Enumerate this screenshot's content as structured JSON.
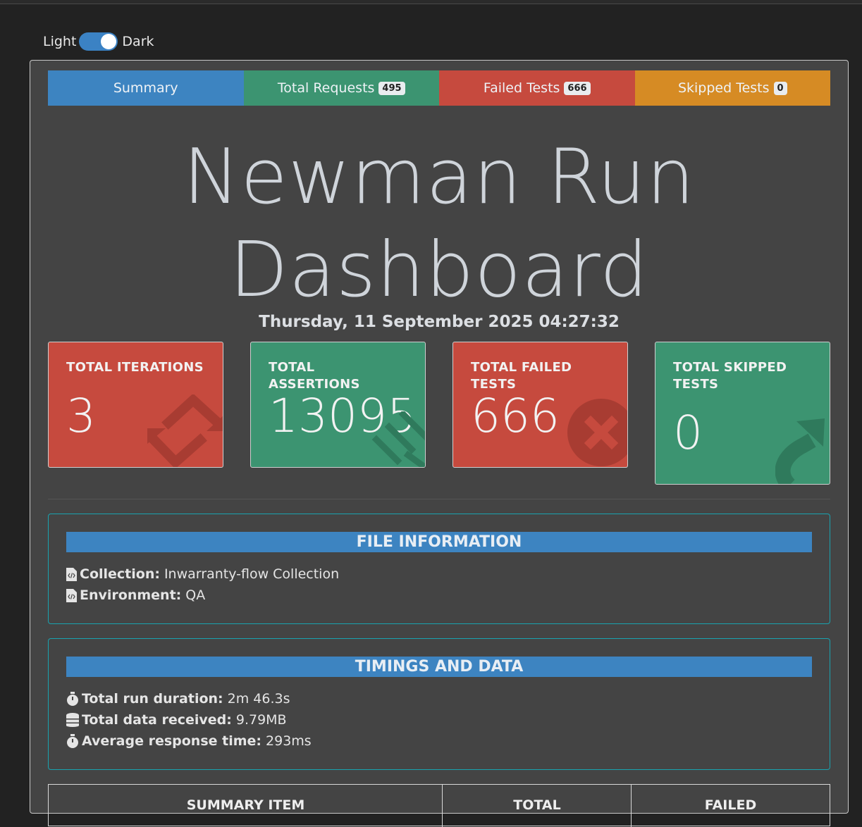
{
  "theme": {
    "light_label": "Light",
    "dark_label": "Dark"
  },
  "tabs": [
    {
      "label": "Summary",
      "badge": ""
    },
    {
      "label": "Total Requests",
      "badge": "495"
    },
    {
      "label": "Failed Tests",
      "badge": "666"
    },
    {
      "label": "Skipped Tests",
      "badge": "0"
    }
  ],
  "header": {
    "title_line1": "Newman Run",
    "title_line2": "Dashboard",
    "datetime": "Thursday, 11 September 2025 04:27:32"
  },
  "cards": [
    {
      "label": "TOTAL ITERATIONS",
      "value": "3",
      "icon": "sync-arrows-icon",
      "color": "#c64a3e"
    },
    {
      "label": "TOTAL ASSERTIONS",
      "value": "13095",
      "icon": "checklist-icon",
      "color": "#3c9471"
    },
    {
      "label": "TOTAL FAILED TESTS",
      "value": "666",
      "icon": "times-circle-icon",
      "color": "#c64a3e"
    },
    {
      "label": "TOTAL SKIPPED TESTS",
      "value": "0",
      "icon": "share-arrow-icon",
      "color": "#3c9471"
    }
  ],
  "file_info": {
    "heading": "FILE INFORMATION",
    "collection_label": "Collection:",
    "collection_value": "Inwarranty-flow Collection",
    "environment_label": "Environment:",
    "environment_value": "QA"
  },
  "timings": {
    "heading": "TIMINGS AND DATA",
    "duration_label": "Total run duration:",
    "duration_value": "2m 46.3s",
    "data_label": "Total data received:",
    "data_value": "9.79MB",
    "response_label": "Average response time:",
    "response_value": "293ms"
  },
  "summary_table": {
    "headers": [
      "SUMMARY ITEM",
      "TOTAL",
      "FAILED"
    ]
  }
}
